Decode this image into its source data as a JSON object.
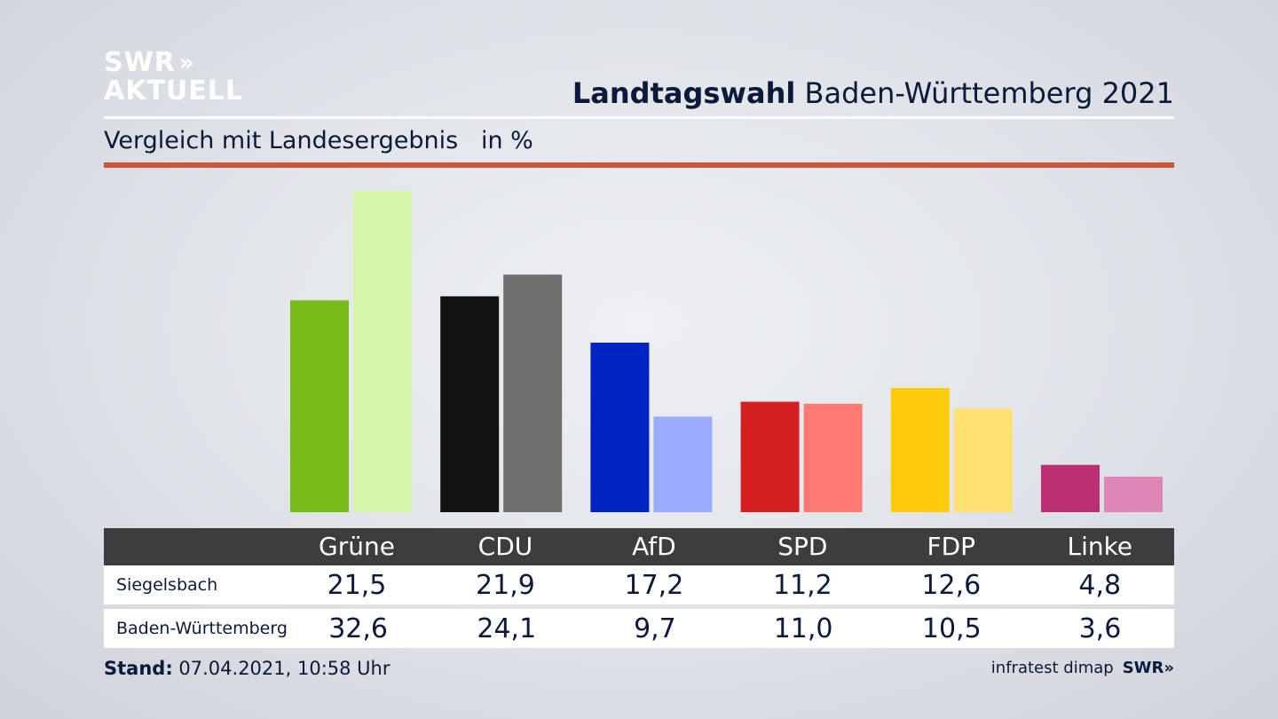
{
  "logo": {
    "line1": "SWR",
    "line2": "AKTUELL",
    "chevrons": "»"
  },
  "headline": {
    "bold": "Landtagswahl",
    "rest": " Baden-Württemberg 2021"
  },
  "subtitle": "Vergleich mit Landesergebnis   in %",
  "colors": {
    "accent_rule": "#cf5440",
    "table_header": "#3d3d3d"
  },
  "chart_data": {
    "type": "bar",
    "categories": [
      "Grüne",
      "CDU",
      "AfD",
      "SPD",
      "FDP",
      "Linke"
    ],
    "series": [
      {
        "name": "Siegelsbach",
        "values": [
          21.5,
          21.9,
          17.2,
          11.2,
          12.6,
          4.8
        ],
        "colors": [
          "#78bc1b",
          "#121212",
          "#0023c4",
          "#d61f23",
          "#ffcb0a",
          "#bc2f75"
        ]
      },
      {
        "name": "Baden-Württemberg",
        "values": [
          32.6,
          24.1,
          9.7,
          11.0,
          10.5,
          3.6
        ],
        "colors": [
          "#d5f5a8",
          "#706f6d",
          "#9cabff",
          "#ff7872",
          "#ffe172",
          "#de87b6"
        ]
      }
    ],
    "ylim": [
      0,
      32.6
    ],
    "grid": false
  },
  "table": {
    "rows": [
      {
        "label": "Siegelsbach",
        "values": [
          "21,5",
          "21,9",
          "17,2",
          "11,2",
          "12,6",
          "4,8"
        ]
      },
      {
        "label": "Baden-Württemberg",
        "values": [
          "32,6",
          "24,1",
          "9,7",
          "11,0",
          "10,5",
          "3,6"
        ]
      }
    ]
  },
  "footer": {
    "stand_label": "Stand:",
    "stand_value": " 07.04.2021, 10:58 Uhr",
    "source": "infratest dimap",
    "source_logo": "SWR»"
  }
}
